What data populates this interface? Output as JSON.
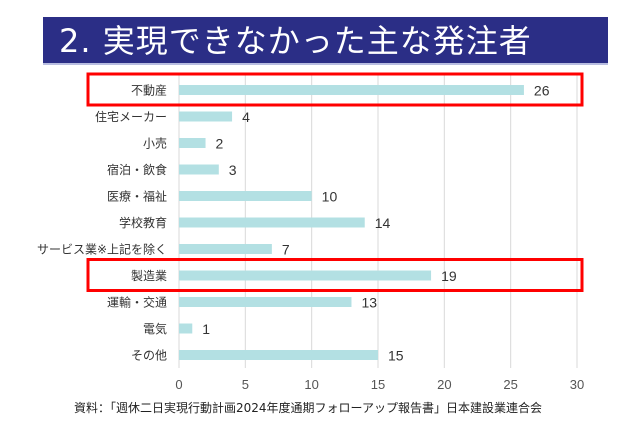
{
  "title": "2. 実現できなかった主な発注者",
  "source": "資料：「週休二日実現行動計画2024年度通期フォローアップ報告書」日本建設業連合会",
  "colors": {
    "bar": "#b3e0e3",
    "highlight": "#ff0000",
    "title_bg": "#2b2e86",
    "grid": "#d9d9d9"
  },
  "chart_data": {
    "type": "bar",
    "orientation": "horizontal",
    "categories": [
      "不動産",
      "住宅メーカー",
      "小売",
      "宿泊・飲食",
      "医療・福祉",
      "学校教育",
      "サービス業※上記を除く",
      "製造業",
      "運輸・交通",
      "電気",
      "その他"
    ],
    "values": [
      26,
      4,
      2,
      3,
      10,
      14,
      7,
      19,
      13,
      1,
      15
    ],
    "xlim": [
      0,
      30
    ],
    "xticks": [
      0,
      5,
      10,
      15,
      20,
      25,
      30
    ],
    "grid": true,
    "highlighted": [
      "不動産",
      "製造業"
    ],
    "data_labels": true
  }
}
